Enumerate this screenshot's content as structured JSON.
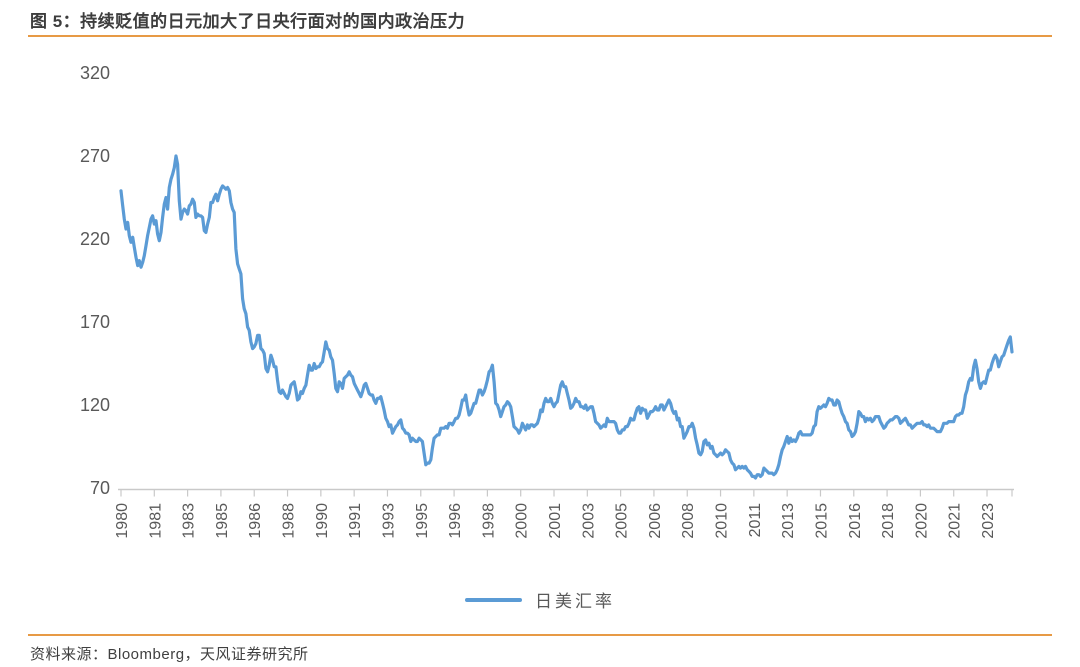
{
  "header": {
    "title": "图 5：持续贬值的日元加大了日央行面对的国内政治压力"
  },
  "legend": {
    "label": "日美汇率"
  },
  "footer": {
    "source": "资料来源：Bloomberg，天风证券研究所"
  },
  "colors": {
    "accent_orange": "#E79A45",
    "line_blue": "#5B9BD5",
    "axis_gray": "#C9C9C9",
    "tick_label_gray": "#595959"
  },
  "chart_data": {
    "type": "line",
    "title": "图 5：持续贬值的日元加大了日央行面对的国内政治压力",
    "xlabel": "",
    "ylabel": "",
    "frequency": "monthly",
    "x_start": "1980-01",
    "x_end": "2024-08",
    "x_tick_interval_months": 20,
    "x_tick_labels": [
      "1980",
      "1981",
      "1983",
      "1985",
      "1986",
      "1988",
      "1990",
      "1991",
      "1993",
      "1995",
      "1996",
      "1998",
      "2000",
      "2001",
      "2003",
      "2005",
      "2006",
      "2008",
      "2010",
      "2011",
      "2013",
      "2015",
      "2016",
      "2018",
      "2020",
      "2021",
      "2023"
    ],
    "y_ticks": [
      320,
      270,
      220,
      170,
      120,
      70
    ],
    "ylim": [
      70,
      320
    ],
    "grid": false,
    "legend_position": "bottom",
    "series": [
      {
        "name": "日美汇率",
        "color": "#5B9BD5",
        "values": [
          249,
          240,
          232,
          226,
          230,
          222,
          218,
          221,
          215,
          209,
          204,
          207,
          203,
          206,
          210,
          216,
          222,
          227,
          232,
          234,
          229,
          231,
          223,
          219,
          224,
          233,
          241,
          245,
          238,
          251,
          256,
          259,
          263,
          270,
          265,
          243,
          232,
          236,
          238,
          237,
          235,
          240,
          241,
          244,
          242,
          233,
          235,
          234,
          234,
          233,
          225,
          224,
          229,
          233,
          242,
          242,
          245,
          247,
          243,
          247,
          250,
          252,
          251,
          250,
          251,
          249,
          242,
          238,
          236,
          214,
          205,
          202,
          199,
          184,
          178,
          175,
          167,
          165,
          158,
          154,
          155,
          157,
          162,
          162,
          154,
          153,
          151,
          142,
          140,
          144,
          150,
          147,
          143,
          143,
          135,
          128,
          127,
          129,
          127,
          125,
          124,
          127,
          132,
          133,
          134,
          129,
          123,
          124,
          128,
          127,
          130,
          132,
          138,
          144,
          141,
          141,
          145,
          142,
          143,
          143,
          145,
          146,
          152,
          158,
          154,
          153,
          149,
          147,
          139,
          130,
          128,
          134,
          133,
          130,
          136,
          137,
          138,
          140,
          138,
          137,
          133,
          131,
          129,
          127,
          125,
          128,
          132,
          133,
          130,
          127,
          126,
          126,
          123,
          121,
          124,
          124,
          125,
          121,
          117,
          112,
          110,
          107,
          108,
          103,
          105,
          107,
          108,
          110,
          111,
          106,
          105,
          103,
          103,
          102,
          98,
          100,
          99,
          98,
          98,
          100,
          99,
          98,
          91,
          84,
          85,
          85,
          87,
          94,
          100,
          101,
          102,
          102,
          106,
          106,
          106,
          107,
          106,
          109,
          109,
          108,
          110,
          112,
          112,
          114,
          118,
          123,
          123,
          126,
          119,
          114,
          115,
          118,
          121,
          121,
          125,
          129,
          129,
          126,
          128,
          131,
          135,
          140,
          141,
          144,
          134,
          121,
          120,
          117,
          113,
          116,
          119,
          120,
          122,
          121,
          119,
          113,
          107,
          106,
          105,
          103,
          105,
          109,
          107,
          105,
          108,
          106,
          108,
          108,
          107,
          108,
          109,
          112,
          117,
          116,
          121,
          124,
          122,
          122,
          124,
          121,
          119,
          121,
          122,
          127,
          132,
          134,
          131,
          131,
          127,
          123,
          118,
          119,
          121,
          124,
          122,
          122,
          119,
          119,
          118,
          120,
          117,
          118,
          119,
          119,
          115,
          110,
          109,
          108,
          106,
          107,
          108,
          107,
          112,
          110,
          110,
          110,
          110,
          109,
          105,
          103,
          103,
          105,
          105,
          107,
          107,
          109,
          112,
          111,
          111,
          115,
          118,
          119,
          115,
          118,
          117,
          117,
          112,
          114,
          116,
          116,
          117,
          119,
          117,
          117,
          120,
          120,
          117,
          119,
          121,
          123,
          121,
          117,
          115,
          116,
          111,
          112,
          107,
          107,
          100,
          102,
          104,
          107,
          107,
          109,
          106,
          100,
          96,
          91,
          90,
          92,
          98,
          99,
          96,
          97,
          94,
          95,
          91,
          90,
          89,
          90,
          91,
          90,
          91,
          93,
          92,
          91,
          87,
          85,
          84,
          81,
          82,
          83,
          82,
          83,
          82,
          83,
          81,
          80,
          79,
          77,
          77,
          76,
          78,
          78,
          77,
          78,
          82,
          81,
          80,
          79,
          79,
          79,
          78,
          79,
          81,
          84,
          89,
          93,
          95,
          98,
          101,
          97,
          100,
          98,
          99,
          98,
          100,
          103,
          104,
          102,
          102,
          102,
          102,
          102,
          102,
          103,
          107,
          108,
          116,
          119,
          118,
          119,
          120,
          119,
          121,
          124,
          123,
          123,
          120,
          120,
          123,
          122,
          118,
          115,
          113,
          110,
          109,
          105,
          104,
          101,
          102,
          104,
          109,
          116,
          115,
          113,
          113,
          110,
          112,
          111,
          112,
          110,
          111,
          113,
          113,
          113,
          110,
          108,
          106,
          107,
          109,
          110,
          111,
          111,
          112,
          113,
          113,
          112,
          109,
          110,
          111,
          112,
          110,
          108,
          108,
          106,
          107,
          108,
          109,
          109,
          109,
          110,
          108,
          108,
          107,
          108,
          106,
          106,
          106,
          105,
          104,
          104,
          104,
          106,
          109,
          109,
          109,
          110,
          110,
          110,
          110,
          113,
          114,
          114,
          115,
          115,
          119,
          126,
          129,
          134,
          136,
          135,
          143,
          147,
          142,
          134,
          130,
          133,
          134,
          133,
          137,
          141,
          141,
          145,
          148,
          150,
          148,
          143,
          146,
          149,
          150,
          153,
          156,
          159,
          161,
          152
        ]
      }
    ]
  }
}
